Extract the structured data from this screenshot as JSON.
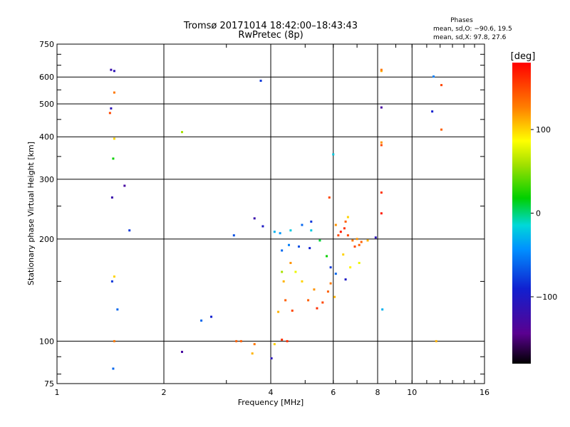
{
  "chart_data": {
    "type": "scatter",
    "title": "Tromsø 20171014 18:42:00–18:43:43",
    "subtitle": "RwPretec (8p)",
    "xlabel": "Frequency [MHz]",
    "ylabel": "Stationary phase Virtual Height [km]",
    "x_scale": "log",
    "y_scale": "log",
    "xlim": [
      1,
      16
    ],
    "ylim": [
      75,
      750
    ],
    "x_ticks": [
      1,
      2,
      4,
      6,
      8,
      10,
      16
    ],
    "x_tick_labels": [
      "1",
      "2",
      "4",
      "6",
      "8",
      "10",
      "16"
    ],
    "y_ticks": [
      75,
      100,
      200,
      300,
      400,
      500,
      600,
      750
    ],
    "y_tick_labels": [
      "75",
      "100",
      "200",
      "300",
      "400",
      "500",
      "600",
      "750"
    ],
    "grid": true,
    "phases_box": {
      "title": "Phases",
      "line_o": "mean, sd,O: −90.6, 19.5",
      "line_x": "mean, sd,X:  97.8, 27.6"
    },
    "colorbar": {
      "label": "[deg]",
      "ticks": [
        100,
        0,
        -100
      ],
      "tick_labels": [
        "100",
        "0",
        "−100"
      ],
      "range": [
        -180,
        180
      ]
    },
    "points": [
      [
        1.42,
        630,
        -120
      ],
      [
        1.45,
        625,
        -110
      ],
      [
        1.45,
        540,
        130
      ],
      [
        1.42,
        485,
        -110
      ],
      [
        1.41,
        470,
        150
      ],
      [
        1.45,
        395,
        100
      ],
      [
        1.44,
        345,
        20
      ],
      [
        1.43,
        265,
        -120
      ],
      [
        1.55,
        287,
        -130
      ],
      [
        1.6,
        212,
        -80
      ],
      [
        1.45,
        155,
        100
      ],
      [
        1.43,
        150,
        -80
      ],
      [
        1.48,
        124,
        -60
      ],
      [
        1.45,
        100,
        130
      ],
      [
        1.44,
        83,
        -60
      ],
      [
        2.25,
        413,
        60
      ],
      [
        2.25,
        93,
        -130
      ],
      [
        3.75,
        585,
        -80
      ],
      [
        6.0,
        355,
        -20
      ],
      [
        5.85,
        265,
        150
      ],
      [
        8.2,
        625,
        110
      ],
      [
        8.2,
        630,
        130
      ],
      [
        8.2,
        488,
        -130
      ],
      [
        8.2,
        385,
        120
      ],
      [
        8.2,
        378,
        150
      ],
      [
        8.2,
        274,
        160
      ],
      [
        8.2,
        238,
        170
      ],
      [
        8.25,
        124,
        -30
      ],
      [
        11.5,
        602,
        -50
      ],
      [
        12.1,
        568,
        150
      ],
      [
        11.4,
        475,
        -90
      ],
      [
        12.1,
        420,
        140
      ],
      [
        11.7,
        100,
        110
      ],
      [
        4.02,
        89,
        -110
      ],
      [
        4.3,
        101,
        160
      ],
      [
        4.45,
        100,
        160
      ],
      [
        3.55,
        92,
        110
      ],
      [
        3.6,
        98,
        130
      ],
      [
        3.2,
        100,
        140
      ],
      [
        3.3,
        100,
        140
      ],
      [
        4.1,
        98,
        100
      ],
      [
        2.72,
        118,
        -90
      ],
      [
        2.55,
        115,
        -60
      ],
      [
        3.15,
        205,
        -70
      ],
      [
        3.6,
        230,
        -120
      ],
      [
        3.8,
        218,
        -100
      ],
      [
        4.1,
        210,
        -30
      ],
      [
        4.25,
        208,
        -40
      ],
      [
        4.55,
        212,
        -20
      ],
      [
        4.9,
        220,
        -60
      ],
      [
        5.2,
        225,
        -80
      ],
      [
        5.2,
        212,
        -20
      ],
      [
        5.5,
        198,
        10
      ],
      [
        5.15,
        188,
        -90
      ],
      [
        4.8,
        190,
        -70
      ],
      [
        4.5,
        192,
        -50
      ],
      [
        4.3,
        185,
        -60
      ],
      [
        6.2,
        205,
        150
      ],
      [
        6.3,
        210,
        170
      ],
      [
        6.45,
        215,
        160
      ],
      [
        6.5,
        225,
        140
      ],
      [
        6.6,
        205,
        150
      ],
      [
        6.8,
        198,
        130
      ],
      [
        7.0,
        200,
        120
      ],
      [
        7.2,
        196,
        140
      ],
      [
        7.5,
        198,
        110
      ],
      [
        7.9,
        202,
        -110
      ],
      [
        6.1,
        220,
        120
      ],
      [
        6.6,
        232,
        100
      ],
      [
        6.9,
        190,
        150
      ],
      [
        7.1,
        192,
        140
      ],
      [
        6.4,
        180,
        100
      ],
      [
        6.7,
        165,
        90
      ],
      [
        7.1,
        170,
        80
      ],
      [
        5.75,
        178,
        20
      ],
      [
        5.9,
        165,
        -80
      ],
      [
        6.1,
        158,
        -60
      ],
      [
        6.5,
        152,
        -100
      ],
      [
        5.8,
        140,
        140
      ],
      [
        5.6,
        130,
        150
      ],
      [
        5.4,
        125,
        160
      ],
      [
        5.9,
        148,
        130
      ],
      [
        6.05,
        135,
        110
      ],
      [
        5.3,
        142,
        120
      ],
      [
        5.1,
        132,
        140
      ],
      [
        4.9,
        150,
        100
      ],
      [
        4.7,
        160,
        80
      ],
      [
        4.55,
        170,
        120
      ],
      [
        4.35,
        150,
        110
      ],
      [
        4.4,
        132,
        140
      ],
      [
        4.6,
        123,
        150
      ],
      [
        4.2,
        122,
        110
      ],
      [
        4.3,
        160,
        60
      ]
    ]
  }
}
